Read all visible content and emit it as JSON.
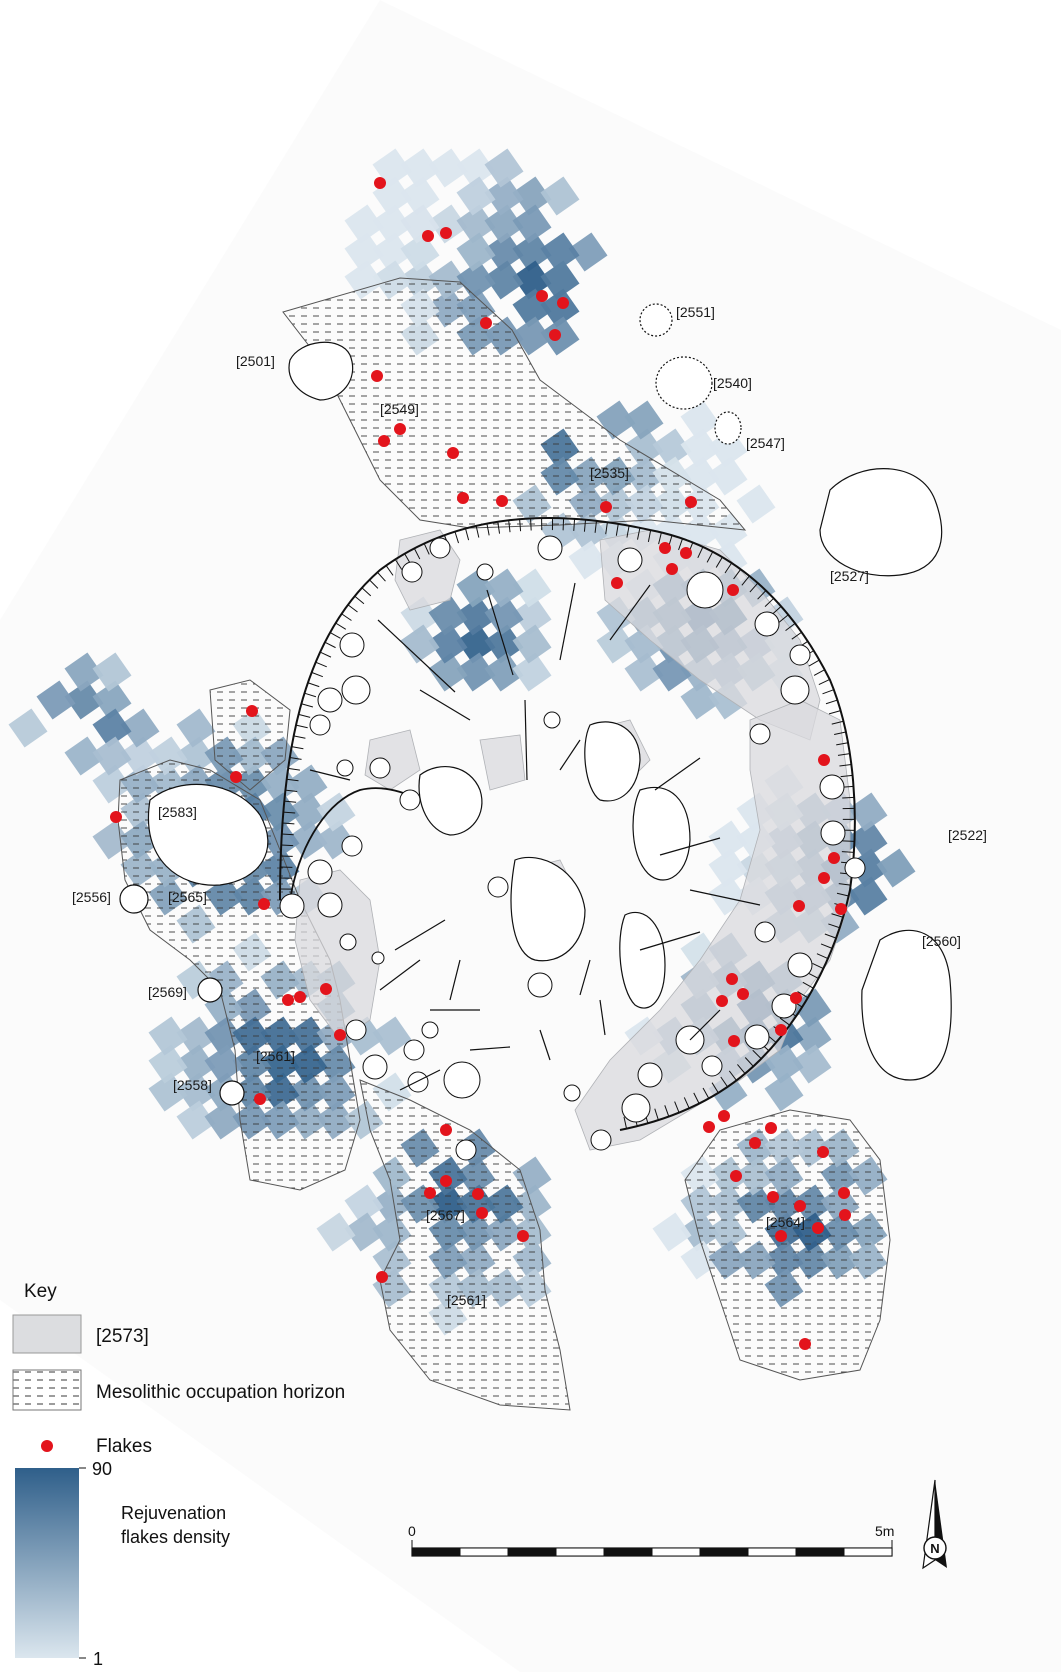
{
  "feature_labels": {
    "f2551": "[2551]",
    "f2540": "[2540]",
    "f2547": "[2547]",
    "f2501": "[2501]",
    "f2549": "[2549]",
    "f2535": "[2535]",
    "f2527": "[2527]",
    "f2522": "[2522]",
    "f2583": "[2583]",
    "f2556": "[2556]",
    "f2565": "[2565]",
    "f2560": "[2560]",
    "f2569": "[2569]",
    "f2561a": "[2561]",
    "f2558": "[2558]",
    "f2567": "[2567]",
    "f2564": "[2564]",
    "f2561b": "[2561]"
  },
  "key": {
    "title": "Key",
    "item_2573": "[2573]",
    "item_horizon": "Mesolithic occupation horizon",
    "item_flakes": "Flakes",
    "density_line1": "Rejuvenation",
    "density_line2": "flakes density",
    "density_max": "90",
    "density_min": "1"
  },
  "scale_bar": {
    "start": "0",
    "end": "5m"
  },
  "north_arrow": {
    "letter": "N"
  },
  "colors": {
    "density_low": "#dbe6ee",
    "density_high": "#2f5f8a",
    "flake": "#e3141c",
    "feature_2573": "#d9dadd"
  }
}
